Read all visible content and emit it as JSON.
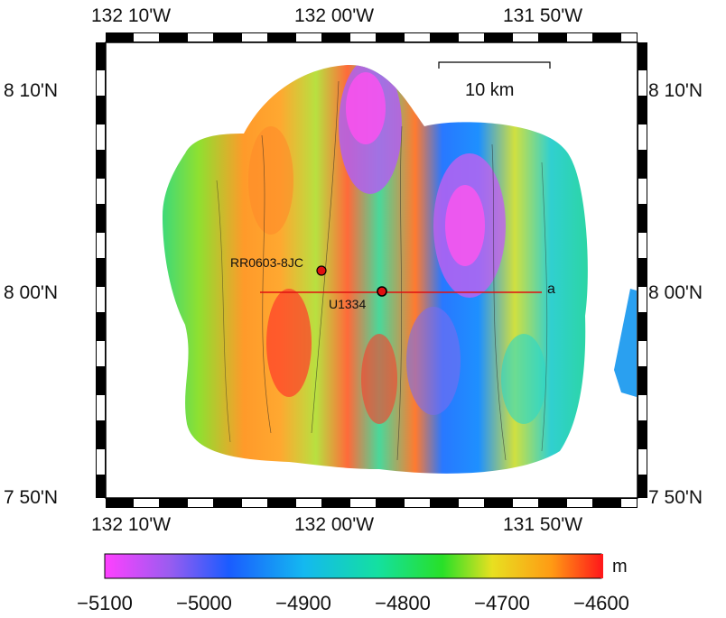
{
  "map": {
    "lon_labels_top": [
      "132 10'W",
      "132 00'W",
      "131 50'W"
    ],
    "lon_labels_bottom": [
      "132 10'W",
      "132 00'W",
      "131 50'W"
    ],
    "lat_labels_left": [
      "8 10'N",
      "8 00'N",
      "7 50'N"
    ],
    "lat_labels_right": [
      "8 10'N",
      "8 00'N",
      "7 50'N"
    ],
    "scale_bar_label": "10 km",
    "sites": [
      {
        "name": "RR0603-8JC",
        "type": "core-site",
        "color": "#e01010"
      },
      {
        "name": "U1334",
        "type": "drill-site",
        "color": "#e01010"
      }
    ],
    "profile_line_label": "a",
    "profile_line_color": "#e01010"
  },
  "colorbar": {
    "unit": "m",
    "tick_labels": [
      "−5100",
      "−5000",
      "−4900",
      "−4800",
      "−4700",
      "−4600"
    ],
    "range": [
      -5100,
      -4600
    ],
    "colors": [
      "#ff40ff",
      "#9a5cf0",
      "#1a5cff",
      "#14b8f0",
      "#14e0a0",
      "#28e028",
      "#e8e020",
      "#ff9a14",
      "#ff1a1a"
    ]
  }
}
